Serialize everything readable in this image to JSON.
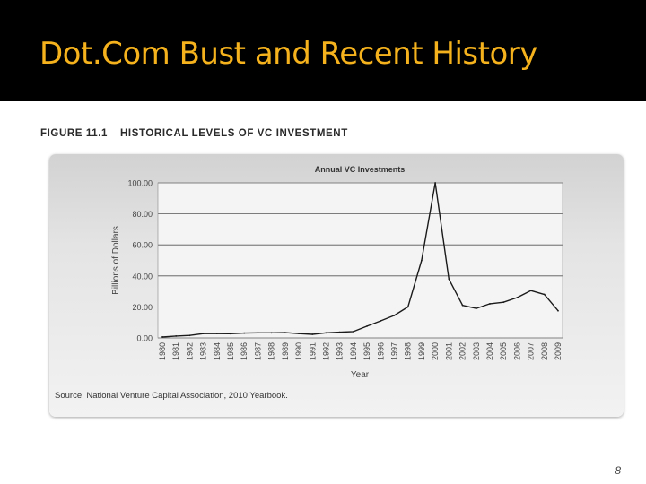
{
  "slide": {
    "title": "Dot.Com Bust and Recent History",
    "page_number": "8"
  },
  "figure": {
    "number": "FIGURE 11.1",
    "caption": "HISTORICAL LEVELS OF VC INVESTMENT",
    "source": "Source: National Venture Capital Association, 2010 Yearbook."
  },
  "colors": {
    "title_bar": "#000000",
    "title_text": "#f5b21c",
    "line": "#1a1a1a",
    "grid": "#555555"
  },
  "chart_data": {
    "type": "line",
    "title": "Annual VC Investments",
    "xlabel": "Year",
    "ylabel": "Billions of Dollars",
    "ylim": [
      0,
      100
    ],
    "yticks": [
      "0.00",
      "20.00",
      "40.00",
      "60.00",
      "80.00",
      "100.00"
    ],
    "grid": true,
    "categories": [
      "1980",
      "1981",
      "1982",
      "1983",
      "1984",
      "1985",
      "1986",
      "1987",
      "1988",
      "1989",
      "1990",
      "1991",
      "1992",
      "1993",
      "1994",
      "1995",
      "1996",
      "1997",
      "1998",
      "1999",
      "2000",
      "2001",
      "2002",
      "2003",
      "2004",
      "2005",
      "2006",
      "2007",
      "2008",
      "2009"
    ],
    "values": [
      0.6,
      1.2,
      1.6,
      2.8,
      2.8,
      2.7,
      3.1,
      3.3,
      3.3,
      3.4,
      2.8,
      2.3,
      3.3,
      3.7,
      4.1,
      7.6,
      11.0,
      14.5,
      20.0,
      50.0,
      100.0,
      38.0,
      21.0,
      19.0,
      22.0,
      23.0,
      26.0,
      30.5,
      28.0,
      17.5
    ]
  }
}
